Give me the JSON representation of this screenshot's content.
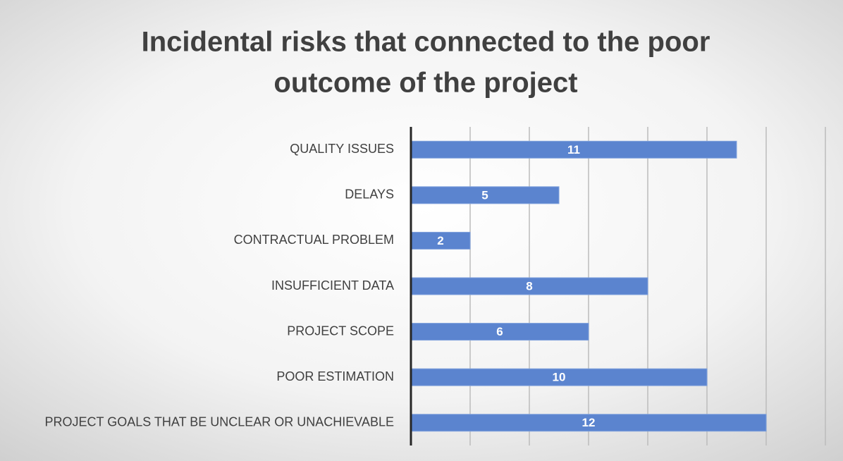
{
  "chart_data": {
    "type": "barh",
    "title": [
      "Incidental risks that connected to the poor",
      "outcome of the project"
    ],
    "categories": [
      "QUALITY ISSUES",
      "DELAYS",
      "CONTRACTUAL PROBLEM",
      "INSUFFICIENT DATA",
      "PROJECT SCOPE",
      "POOR ESTIMATION",
      "PROJECT GOALS THAT BE UNCLEAR OR UNACHIEVABLE"
    ],
    "values": [
      11,
      5,
      2,
      8,
      6,
      10,
      12
    ],
    "color": "#5b84cf",
    "xlim": [
      0,
      14
    ],
    "xticks": [
      0,
      2,
      4,
      6,
      8,
      10,
      12,
      14
    ],
    "grid": true,
    "tick_labels": false,
    "data_labels": true
  }
}
